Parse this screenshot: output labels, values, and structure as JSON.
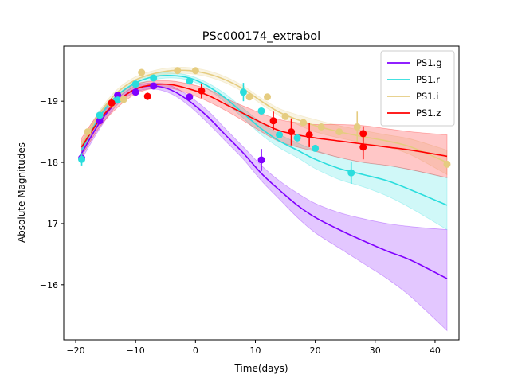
{
  "chart_data": {
    "type": "line",
    "title": "PSc000174_extrabol",
    "xlabel": "Time(days)",
    "ylabel": "Absolute Magnitudes",
    "xlim": [
      -22,
      44
    ],
    "ylim": [
      -15.1,
      -19.9
    ],
    "y_inverted": true,
    "xticks": [
      -20,
      -10,
      0,
      10,
      20,
      30,
      40
    ],
    "yticks": [
      -16,
      -17,
      -18,
      -19
    ],
    "tick_labels_x": [
      "−20",
      "−10",
      "0",
      "10",
      "20",
      "30",
      "40"
    ],
    "tick_labels_y": [
      "−16",
      "−17",
      "−18",
      "−19"
    ],
    "grid": false,
    "legend_position": "top-right",
    "series": [
      {
        "name": "PS1.g",
        "color": "#8000ff",
        "model_x": [
          -19,
          -16,
          -13,
          -10,
          -7,
          -4,
          -1,
          2,
          5,
          8,
          11,
          14,
          17,
          20,
          24,
          28,
          32,
          36,
          42
        ],
        "model_y": [
          -18.15,
          -18.65,
          -19.0,
          -19.2,
          -19.25,
          -19.18,
          -19.0,
          -18.75,
          -18.45,
          -18.15,
          -17.82,
          -17.55,
          -17.3,
          -17.1,
          -16.9,
          -16.72,
          -16.55,
          -16.4,
          -16.1
        ],
        "band_upper": [
          -18.25,
          -18.75,
          -19.05,
          -19.25,
          -19.3,
          -19.25,
          -19.08,
          -18.85,
          -18.55,
          -18.25,
          -17.95,
          -17.7,
          -17.5,
          -17.33,
          -17.18,
          -17.08,
          -17.0,
          -16.95,
          -16.9
        ],
        "band_lower": [
          -18.05,
          -18.55,
          -18.95,
          -19.15,
          -19.2,
          -19.12,
          -18.92,
          -18.65,
          -18.35,
          -18.05,
          -17.7,
          -17.4,
          -17.1,
          -16.85,
          -16.6,
          -16.35,
          -16.1,
          -15.8,
          -15.25
        ],
        "points": [
          {
            "x": -19,
            "y": -18.07,
            "err": 0.0
          },
          {
            "x": -16,
            "y": -18.68,
            "err": 0.0
          },
          {
            "x": -13,
            "y": -19.1,
            "err": 0.0
          },
          {
            "x": -10,
            "y": -19.15,
            "err": 0.0
          },
          {
            "x": -7,
            "y": -19.25,
            "err": 0.0
          },
          {
            "x": -1,
            "y": -19.07,
            "err": 0.0
          },
          {
            "x": 11,
            "y": -18.04,
            "err": 0.18
          }
        ]
      },
      {
        "name": "PS1.r",
        "color": "#2adddd",
        "model_x": [
          -19,
          -16,
          -13,
          -10,
          -7,
          -4,
          -1,
          2,
          5,
          8,
          11,
          14,
          17,
          20,
          24,
          28,
          32,
          36,
          42
        ],
        "model_y": [
          -18.2,
          -18.75,
          -19.1,
          -19.3,
          -19.4,
          -19.42,
          -19.38,
          -19.25,
          -19.05,
          -18.8,
          -18.55,
          -18.35,
          -18.2,
          -18.05,
          -17.9,
          -17.8,
          -17.7,
          -17.55,
          -17.3
        ],
        "band_upper": [
          -18.28,
          -18.82,
          -19.15,
          -19.35,
          -19.45,
          -19.46,
          -19.42,
          -19.3,
          -19.12,
          -18.88,
          -18.65,
          -18.46,
          -18.32,
          -18.2,
          -18.08,
          -18.0,
          -17.95,
          -17.88,
          -17.75
        ],
        "band_lower": [
          -18.12,
          -18.68,
          -19.05,
          -19.25,
          -19.35,
          -19.38,
          -19.34,
          -19.2,
          -18.98,
          -18.72,
          -18.45,
          -18.24,
          -18.08,
          -17.9,
          -17.72,
          -17.6,
          -17.45,
          -17.25,
          -16.9
        ],
        "points": [
          {
            "x": -19,
            "y": -18.05,
            "err": 0.1
          },
          {
            "x": -16,
            "y": -18.77,
            "err": 0.05
          },
          {
            "x": -13,
            "y": -19.02,
            "err": 0.0
          },
          {
            "x": -10,
            "y": -19.28,
            "err": 0.0
          },
          {
            "x": -7,
            "y": -19.38,
            "err": 0.0
          },
          {
            "x": -1,
            "y": -19.33,
            "err": 0.0
          },
          {
            "x": 8,
            "y": -19.15,
            "err": 0.15
          },
          {
            "x": 11,
            "y": -18.84,
            "err": 0.0
          },
          {
            "x": 14,
            "y": -18.45,
            "err": 0.0
          },
          {
            "x": 17,
            "y": -18.4,
            "err": 0.0
          },
          {
            "x": 20,
            "y": -18.23,
            "err": 0.0
          },
          {
            "x": 26,
            "y": -17.83,
            "err": 0.18
          }
        ]
      },
      {
        "name": "PS1.i",
        "color": "#e5cc80",
        "model_x": [
          -19,
          -16,
          -13,
          -10,
          -7,
          -4,
          -1,
          2,
          5,
          8,
          11,
          14,
          17,
          20,
          24,
          28,
          32,
          36,
          42
        ],
        "model_y": [
          -18.3,
          -18.8,
          -19.15,
          -19.35,
          -19.45,
          -19.5,
          -19.5,
          -19.45,
          -19.35,
          -19.2,
          -19.0,
          -18.82,
          -18.7,
          -18.6,
          -18.5,
          -18.42,
          -18.35,
          -18.25,
          -18.0
        ],
        "band_upper": [
          -18.35,
          -18.85,
          -19.2,
          -19.4,
          -19.5,
          -19.55,
          -19.55,
          -19.5,
          -19.4,
          -19.25,
          -19.05,
          -18.88,
          -18.78,
          -18.7,
          -18.6,
          -18.52,
          -18.45,
          -18.38,
          -18.2
        ],
        "band_lower": [
          -18.25,
          -18.75,
          -19.1,
          -19.3,
          -19.4,
          -19.45,
          -19.45,
          -19.4,
          -19.3,
          -19.15,
          -18.95,
          -18.76,
          -18.62,
          -18.5,
          -18.4,
          -18.32,
          -18.25,
          -18.12,
          -17.8
        ],
        "points": [
          {
            "x": -18,
            "y": -18.5,
            "err": 0.0
          },
          {
            "x": -14,
            "y": -18.95,
            "err": 0.0
          },
          {
            "x": -12,
            "y": -19.03,
            "err": 0.0
          },
          {
            "x": -9,
            "y": -19.47,
            "err": 0.0
          },
          {
            "x": -3,
            "y": -19.5,
            "err": 0.0
          },
          {
            "x": 0,
            "y": -19.5,
            "err": 0.05
          },
          {
            "x": 9,
            "y": -19.07,
            "err": 0.0
          },
          {
            "x": 12,
            "y": -19.07,
            "err": 0.0
          },
          {
            "x": 15,
            "y": -18.75,
            "err": 0.0
          },
          {
            "x": 18,
            "y": -18.65,
            "err": 0.0
          },
          {
            "x": 21,
            "y": -18.58,
            "err": 0.0
          },
          {
            "x": 24,
            "y": -18.5,
            "err": 0.0
          },
          {
            "x": 27,
            "y": -18.58,
            "err": 0.25
          },
          {
            "x": 42,
            "y": -17.97,
            "err": 0.0
          }
        ]
      },
      {
        "name": "PS1.z",
        "color": "#ff0000",
        "model_x": [
          -19,
          -16,
          -13,
          -10,
          -7,
          -4,
          -1,
          2,
          5,
          8,
          11,
          14,
          17,
          20,
          24,
          28,
          32,
          36,
          42
        ],
        "model_y": [
          -18.25,
          -18.7,
          -19.0,
          -19.2,
          -19.27,
          -19.27,
          -19.2,
          -19.1,
          -18.95,
          -18.8,
          -18.65,
          -18.52,
          -18.45,
          -18.4,
          -18.35,
          -18.3,
          -18.25,
          -18.2,
          -18.1
        ],
        "band_upper": [
          -18.4,
          -18.82,
          -19.1,
          -19.28,
          -19.33,
          -19.33,
          -19.28,
          -19.2,
          -19.05,
          -18.92,
          -18.8,
          -18.7,
          -18.65,
          -18.62,
          -18.62,
          -18.6,
          -18.55,
          -18.5,
          -18.45
        ],
        "band_lower": [
          -18.1,
          -18.58,
          -18.9,
          -19.12,
          -19.21,
          -19.21,
          -19.12,
          -19.0,
          -18.85,
          -18.68,
          -18.5,
          -18.34,
          -18.25,
          -18.18,
          -18.08,
          -18.0,
          -17.95,
          -17.88,
          -17.75
        ],
        "points": [
          {
            "x": -14,
            "y": -18.97,
            "err": 0.08
          },
          {
            "x": -8,
            "y": -19.08,
            "err": 0.06
          },
          {
            "x": 1,
            "y": -19.17,
            "err": 0.12
          },
          {
            "x": 13,
            "y": -18.68,
            "err": 0.15
          },
          {
            "x": 16,
            "y": -18.5,
            "err": 0.22
          },
          {
            "x": 19,
            "y": -18.45,
            "err": 0.2
          },
          {
            "x": 28,
            "y": -18.47,
            "err": 0.12
          },
          {
            "x": 28,
            "y": -18.25,
            "err": 0.2
          }
        ]
      }
    ]
  }
}
